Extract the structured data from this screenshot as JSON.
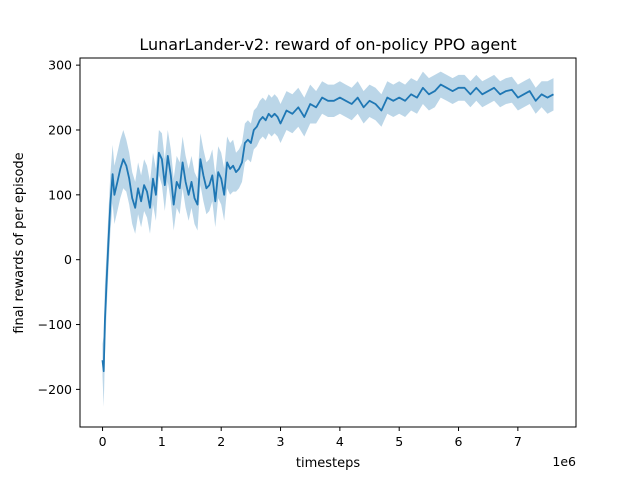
{
  "chart_data": {
    "type": "line",
    "title": "LunarLander-v2: reward of on-policy PPO agent",
    "xlabel": "timesteps",
    "ylabel": "final rewards of per episode",
    "x_offset_label": "1e6",
    "xlim": [
      -0.38,
      7.98
    ],
    "ylim": [
      -258,
      311
    ],
    "x_ticks": [
      0,
      1,
      2,
      3,
      4,
      5,
      6,
      7
    ],
    "x_tick_labels": [
      "0",
      "1",
      "2",
      "3",
      "4",
      "5",
      "6",
      "7"
    ],
    "y_ticks": [
      -200,
      -100,
      0,
      100,
      200,
      300
    ],
    "y_tick_labels": [
      "−200",
      "−100",
      "0",
      "100",
      "200",
      "300"
    ],
    "grid": false,
    "color": "#1f77b4",
    "series": [
      {
        "x": [
          0.0,
          0.02,
          0.04,
          0.07,
          0.1,
          0.13,
          0.17,
          0.2,
          0.25,
          0.3,
          0.35,
          0.4,
          0.45,
          0.5,
          0.55,
          0.6,
          0.65,
          0.7,
          0.75,
          0.8,
          0.85,
          0.9,
          0.95,
          1.0,
          1.05,
          1.1,
          1.15,
          1.2,
          1.25,
          1.3,
          1.35,
          1.4,
          1.45,
          1.5,
          1.55,
          1.6,
          1.65,
          1.7,
          1.75,
          1.8,
          1.85,
          1.9,
          1.95,
          2.0,
          2.05,
          2.1,
          2.15,
          2.2,
          2.25,
          2.3,
          2.35,
          2.4,
          2.45,
          2.5,
          2.55,
          2.6,
          2.65,
          2.7,
          2.75,
          2.8,
          2.85,
          2.9,
          2.95,
          3.0,
          3.1,
          3.2,
          3.3,
          3.4,
          3.5,
          3.6,
          3.7,
          3.8,
          3.9,
          4.0,
          4.1,
          4.2,
          4.3,
          4.4,
          4.5,
          4.6,
          4.7,
          4.8,
          4.9,
          5.0,
          5.1,
          5.2,
          5.3,
          5.4,
          5.5,
          5.6,
          5.7,
          5.8,
          5.9,
          6.0,
          6.1,
          6.2,
          6.3,
          6.4,
          6.5,
          6.6,
          6.7,
          6.8,
          6.9,
          7.0,
          7.1,
          7.2,
          7.3,
          7.4,
          7.5,
          7.6
        ],
        "y": [
          -155,
          -172,
          -95,
          -30,
          30,
          85,
          132,
          100,
          120,
          140,
          155,
          145,
          125,
          95,
          80,
          110,
          90,
          115,
          105,
          80,
          125,
          100,
          165,
          155,
          115,
          160,
          130,
          85,
          120,
          110,
          150,
          120,
          100,
          120,
          95,
          85,
          155,
          130,
          110,
          115,
          130,
          90,
          135,
          125,
          100,
          150,
          140,
          145,
          135,
          140,
          150,
          180,
          185,
          180,
          200,
          205,
          215,
          220,
          215,
          225,
          220,
          225,
          220,
          210,
          230,
          225,
          235,
          220,
          240,
          235,
          250,
          245,
          245,
          250,
          245,
          240,
          250,
          235,
          245,
          240,
          230,
          250,
          245,
          250,
          245,
          255,
          250,
          265,
          255,
          260,
          270,
          265,
          260,
          265,
          265,
          255,
          265,
          255,
          260,
          265,
          255,
          260,
          262,
          250,
          255,
          260,
          245,
          255,
          250,
          255
        ],
        "spread": [
          25,
          55,
          55,
          45,
          45,
          45,
          45,
          45,
          45,
          45,
          45,
          40,
          40,
          40,
          40,
          40,
          40,
          40,
          40,
          40,
          40,
          40,
          35,
          40,
          40,
          40,
          40,
          40,
          40,
          40,
          40,
          40,
          40,
          40,
          40,
          40,
          40,
          40,
          40,
          40,
          40,
          40,
          40,
          40,
          40,
          40,
          40,
          40,
          30,
          30,
          30,
          30,
          30,
          30,
          30,
          30,
          30,
          30,
          30,
          30,
          30,
          30,
          30,
          30,
          30,
          30,
          30,
          30,
          30,
          25,
          25,
          25,
          25,
          25,
          25,
          25,
          25,
          25,
          25,
          25,
          25,
          25,
          25,
          25,
          25,
          25,
          25,
          25,
          25,
          25,
          20,
          20,
          20,
          20,
          20,
          20,
          20,
          20,
          20,
          20,
          20,
          20,
          20,
          20,
          20,
          20,
          20,
          20,
          25,
          25
        ]
      }
    ]
  }
}
